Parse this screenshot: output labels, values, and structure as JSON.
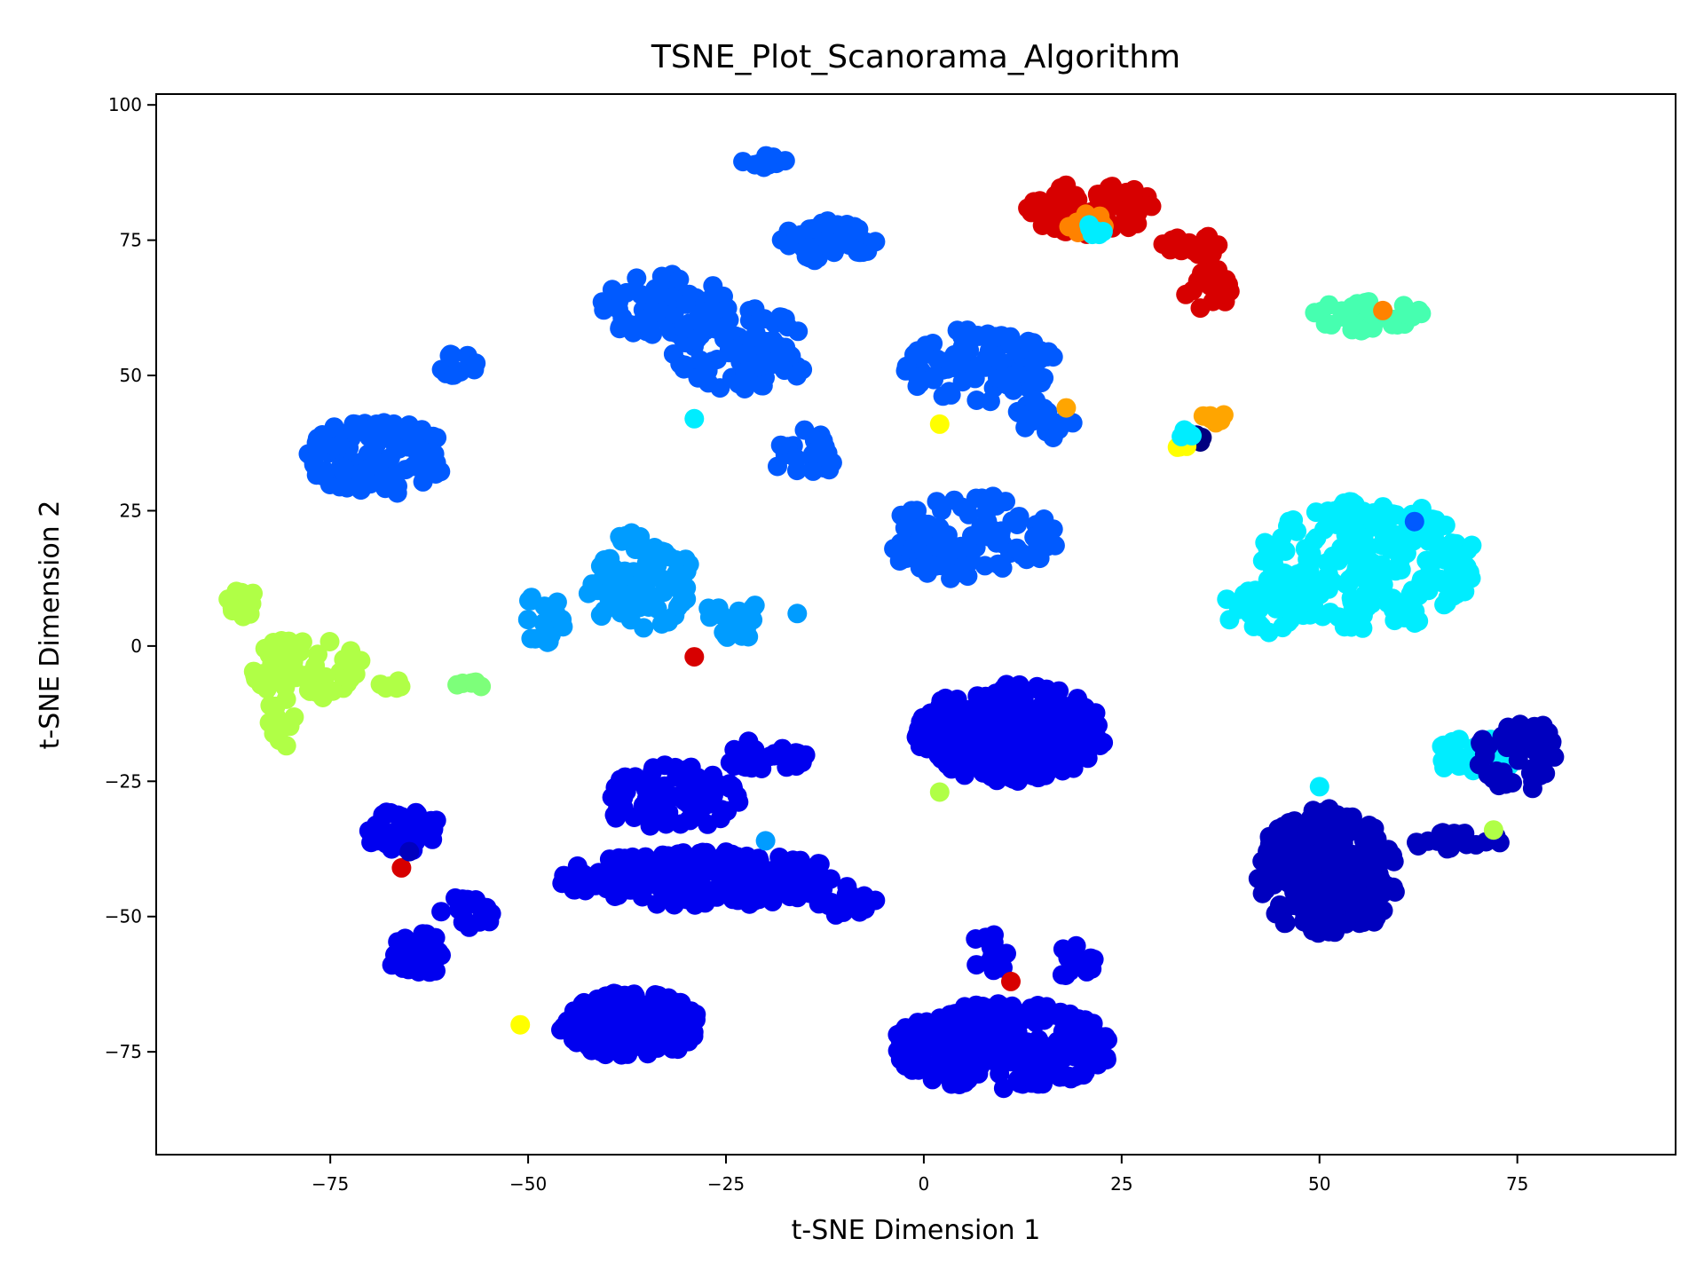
{
  "chart_data": {
    "type": "scatter",
    "title": "TSNE_Plot_Scanorama_Algorithm",
    "xlabel": "t-SNE Dimension 1",
    "ylabel": "t-SNE Dimension 2",
    "xlim": [
      -97,
      95
    ],
    "ylim": [
      -94,
      102
    ],
    "xticks": [
      -75,
      -50,
      -25,
      0,
      25,
      50,
      75
    ],
    "yticks": [
      -75,
      -50,
      -25,
      0,
      25,
      50,
      75,
      100
    ],
    "xtick_labels": [
      "−75",
      "−50",
      "−25",
      "0",
      "25",
      "50",
      "75"
    ],
    "ytick_labels": [
      "−75",
      "−50",
      "−25",
      "0",
      "25",
      "50",
      "75",
      "100"
    ],
    "grid": false,
    "legend": "none",
    "colormap": "jet",
    "clusters": [
      {
        "color": "#005aff",
        "x": -69,
        "y": 35,
        "rx": 9,
        "ry": 7,
        "n": 110
      },
      {
        "color": "#005aff",
        "x": -59,
        "y": 52,
        "rx": 3,
        "ry": 2,
        "n": 12
      },
      {
        "color": "#005aff",
        "x": -33,
        "y": 63,
        "rx": 8,
        "ry": 6,
        "n": 70
      },
      {
        "color": "#005aff",
        "x": -23,
        "y": 55,
        "rx": 9,
        "ry": 8,
        "n": 90
      },
      {
        "color": "#005aff",
        "x": -12,
        "y": 75,
        "rx": 6,
        "ry": 4,
        "n": 50
      },
      {
        "color": "#005aff",
        "x": -20,
        "y": 90,
        "rx": 3,
        "ry": 2,
        "n": 12
      },
      {
        "color": "#005aff",
        "x": 7,
        "y": 52,
        "rx": 10,
        "ry": 7,
        "n": 90
      },
      {
        "color": "#005aff",
        "x": 6,
        "y": 20,
        "rx": 11,
        "ry": 8,
        "n": 100
      },
      {
        "color": "#005aff",
        "x": 15,
        "y": 42,
        "rx": 4,
        "ry": 4,
        "n": 20
      },
      {
        "color": "#005aff",
        "x": -15,
        "y": 35,
        "rx": 4,
        "ry": 5,
        "n": 25
      },
      {
        "color": "#009cff",
        "x": -36,
        "y": 12,
        "rx": 7,
        "ry": 9,
        "n": 90
      },
      {
        "color": "#009cff",
        "x": -24,
        "y": 5,
        "rx": 4,
        "ry": 4,
        "n": 25
      },
      {
        "color": "#009cff",
        "x": -48,
        "y": 5,
        "rx": 3,
        "ry": 5,
        "n": 18
      },
      {
        "color": "#00edff",
        "x": 56,
        "y": 15,
        "rx": 14,
        "ry": 12,
        "n": 220
      },
      {
        "color": "#00edff",
        "x": 43,
        "y": 7,
        "rx": 5,
        "ry": 5,
        "n": 40
      },
      {
        "color": "#00edff",
        "x": 70,
        "y": -20,
        "rx": 6,
        "ry": 4,
        "n": 30
      },
      {
        "color": "#0000ef",
        "x": 11,
        "y": -16,
        "rx": 12,
        "ry": 9,
        "n": 260
      },
      {
        "color": "#0000ef",
        "x": 10,
        "y": -74,
        "rx": 14,
        "ry": 8,
        "n": 260
      },
      {
        "color": "#0000ef",
        "x": -37,
        "y": -70,
        "rx": 9,
        "ry": 6,
        "n": 140
      },
      {
        "color": "#0000ef",
        "x": -28,
        "y": -43,
        "rx": 18,
        "ry": 5,
        "n": 200
      },
      {
        "color": "#0000ef",
        "x": -32,
        "y": -28,
        "rx": 9,
        "ry": 6,
        "n": 90
      },
      {
        "color": "#0000ef",
        "x": -20,
        "y": -20,
        "rx": 6,
        "ry": 3,
        "n": 30
      },
      {
        "color": "#0000ef",
        "x": -66,
        "y": -34,
        "rx": 5,
        "ry": 4,
        "n": 40
      },
      {
        "color": "#0000ef",
        "x": -64,
        "y": -57,
        "rx": 4,
        "ry": 4,
        "n": 30
      },
      {
        "color": "#0000ef",
        "x": -57,
        "y": -49,
        "rx": 4,
        "ry": 3,
        "n": 18
      },
      {
        "color": "#0000ef",
        "x": -10,
        "y": -47,
        "rx": 4,
        "ry": 3,
        "n": 20
      },
      {
        "color": "#0000ef",
        "x": 8,
        "y": -57,
        "rx": 3,
        "ry": 4,
        "n": 15
      },
      {
        "color": "#0000ef",
        "x": 19,
        "y": -58,
        "rx": 3,
        "ry": 4,
        "n": 14
      },
      {
        "color": "#0000bf",
        "x": 51,
        "y": -42,
        "rx": 9,
        "ry": 12,
        "n": 220
      },
      {
        "color": "#0000bf",
        "x": 75,
        "y": -20,
        "rx": 5,
        "ry": 7,
        "n": 50
      },
      {
        "color": "#0000bf",
        "x": 67,
        "y": -36,
        "rx": 6,
        "ry": 2,
        "n": 25
      },
      {
        "color": "#b0ff46",
        "x": -78,
        "y": -4,
        "rx": 7,
        "ry": 6,
        "n": 60
      },
      {
        "color": "#b0ff46",
        "x": -86,
        "y": 8,
        "rx": 2,
        "ry": 3,
        "n": 15
      },
      {
        "color": "#b0ff46",
        "x": -81,
        "y": -14,
        "rx": 2,
        "ry": 5,
        "n": 15
      },
      {
        "color": "#b0ff46",
        "x": -67,
        "y": -7,
        "rx": 2,
        "ry": 1,
        "n": 6
      },
      {
        "color": "#7dff7a",
        "x": -57,
        "y": -7,
        "rx": 2,
        "ry": 1,
        "n": 6
      },
      {
        "color": "#46ffb0",
        "x": 56,
        "y": 61,
        "rx": 7,
        "ry": 3,
        "n": 40
      },
      {
        "color": "#d70000",
        "x": 21,
        "y": 81,
        "rx": 8,
        "ry": 5,
        "n": 60
      },
      {
        "color": "#d70000",
        "x": 34,
        "y": 74,
        "rx": 4,
        "ry": 2,
        "n": 20
      },
      {
        "color": "#d70000",
        "x": 36,
        "y": 66,
        "rx": 3,
        "ry": 4,
        "n": 20
      },
      {
        "color": "#ff8200",
        "x": 21,
        "y": 78,
        "rx": 3,
        "ry": 2,
        "n": 15
      },
      {
        "color": "#00edff",
        "x": 22,
        "y": 77,
        "rx": 2,
        "ry": 1,
        "n": 6
      },
      {
        "color": "#ffa500",
        "x": 37,
        "y": 42,
        "rx": 2,
        "ry": 1,
        "n": 6
      },
      {
        "color": "#000080",
        "x": 34,
        "y": 39,
        "rx": 2,
        "ry": 2,
        "n": 6
      },
      {
        "color": "#ffff00",
        "x": 33,
        "y": 37,
        "rx": 1,
        "ry": 1,
        "n": 5
      },
      {
        "color": "#00edff",
        "x": 33,
        "y": 39,
        "rx": 1,
        "ry": 1,
        "n": 4
      }
    ],
    "outliers": [
      {
        "x": -29,
        "y": -2,
        "color": "#d70000"
      },
      {
        "x": -66,
        "y": -41,
        "color": "#d70000"
      },
      {
        "x": -51,
        "y": -70,
        "color": "#ffff00"
      },
      {
        "x": 2,
        "y": 41,
        "color": "#ffff00"
      },
      {
        "x": 18,
        "y": 44,
        "color": "#ffa500"
      },
      {
        "x": 11,
        "y": -62,
        "color": "#d70000"
      },
      {
        "x": 2,
        "y": -27,
        "color": "#b0ff46"
      },
      {
        "x": 58,
        "y": 62,
        "color": "#ff8200"
      },
      {
        "x": -29,
        "y": 42,
        "color": "#00edff"
      },
      {
        "x": -20,
        "y": -36,
        "color": "#009cff"
      },
      {
        "x": 72,
        "y": -34,
        "color": "#b0ff46"
      },
      {
        "x": -65,
        "y": -38,
        "color": "#0000bf"
      },
      {
        "x": 62,
        "y": 23,
        "color": "#005aff"
      },
      {
        "x": -16,
        "y": 6,
        "color": "#009cff"
      },
      {
        "x": 50,
        "y": -26,
        "color": "#00edff"
      }
    ]
  }
}
